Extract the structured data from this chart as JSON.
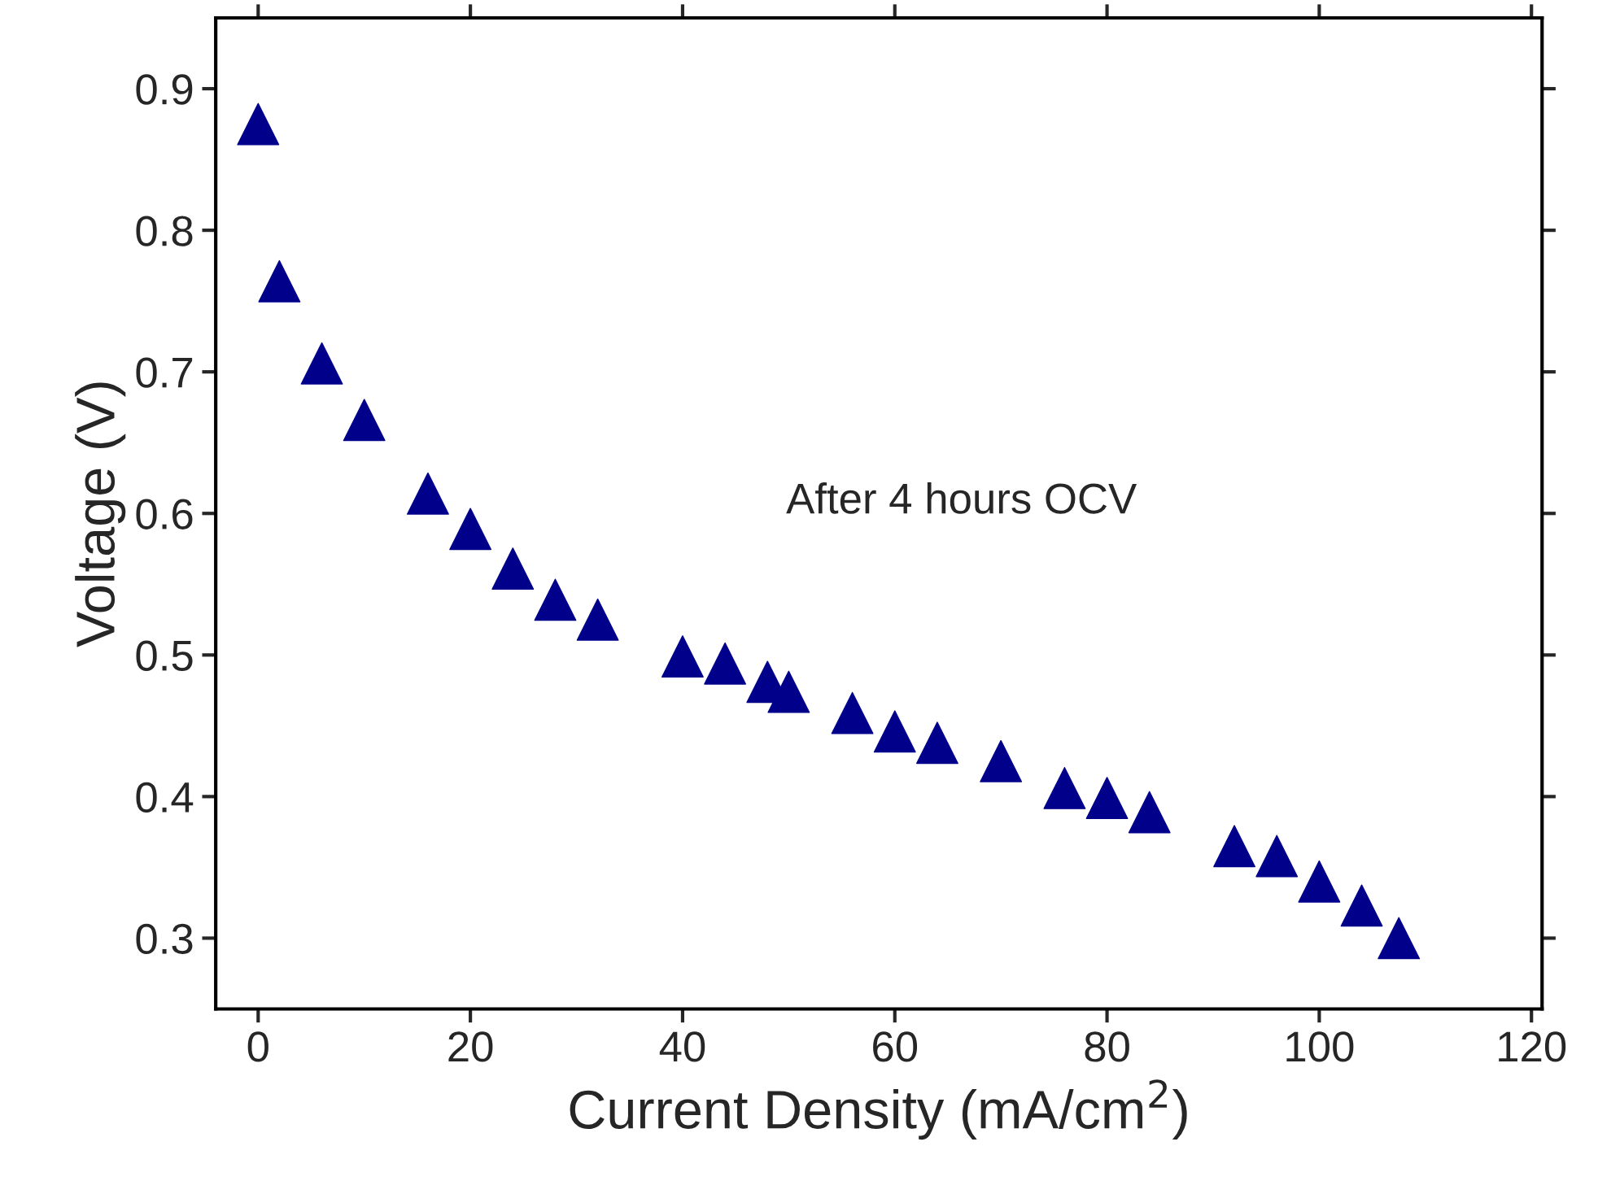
{
  "chart_data": {
    "type": "scatter",
    "xlabel": "Current Density (mA/cm$^{2}$)",
    "ylabel": "Voltage (V)",
    "annotations": [
      "After 4 hours OCV"
    ],
    "x": [
      0,
      2,
      6,
      10,
      16,
      20,
      24,
      28,
      32,
      40,
      44,
      48,
      50,
      56,
      60,
      64,
      70,
      76,
      80,
      84,
      92,
      96,
      100,
      104,
      107.5
    ],
    "series": [
      {
        "color": "#00008b",
        "values": [
          0.875,
          0.764,
          0.706,
          0.666,
          0.614,
          0.589,
          0.561,
          0.539,
          0.525,
          0.499,
          0.494,
          0.481,
          0.474,
          0.459,
          0.446,
          0.438,
          0.425,
          0.406,
          0.399,
          0.389,
          0.365,
          0.358,
          0.34,
          0.323,
          0.3
        ]
      }
    ],
    "marker": "triangle",
    "xlim": [
      -4,
      121
    ],
    "xticks": [
      0,
      20,
      40,
      60,
      80,
      100,
      120
    ],
    "ylim": [
      0.25,
      0.95
    ],
    "yticks": [
      0.3,
      0.4,
      0.5,
      0.6,
      0.7,
      0.8,
      0.9
    ],
    "grid": false,
    "legend": false
  }
}
